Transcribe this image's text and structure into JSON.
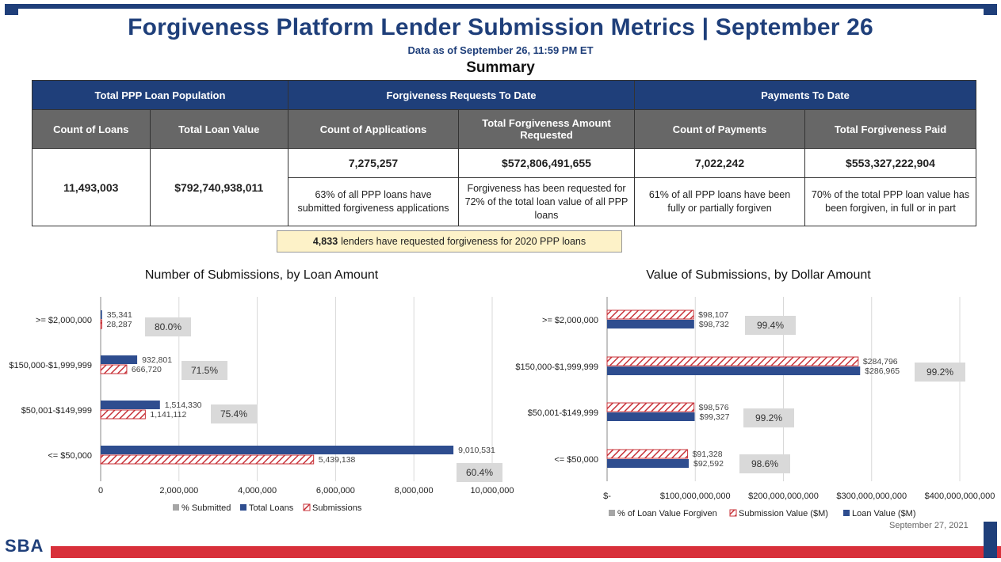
{
  "header": {
    "title": "Forgiveness Platform Lender Submission Metrics | September 26",
    "subtitle": "Data as of September 26, 11:59 PM ET",
    "summary_label": "Summary"
  },
  "summary_table": {
    "group_headers": [
      "Total PPP Loan Population",
      "Forgiveness Requests To Date",
      "Payments To Date"
    ],
    "column_headers": [
      "Count of Loans",
      "Total Loan Value",
      "Count of Applications",
      "Total Forgiveness Amount Requested",
      "Count of Payments",
      "Total Forgiveness Paid"
    ],
    "count_of_loans": "11,493,003",
    "total_loan_value": "$792,740,938,011",
    "count_of_applications": "7,275,257",
    "total_forgiveness_requested": "$572,806,491,655",
    "count_of_payments": "7,022,242",
    "total_forgiveness_paid": "$553,327,222,904",
    "notes": [
      "63% of all PPP loans have submitted forgiveness applications",
      "Forgiveness has been requested for 72% of the total loan value of all PPP loans",
      "61% of all PPP loans have been fully or partially forgiven",
      "70% of the total PPP loan value has been forgiven, in full or in part"
    ]
  },
  "lenders_note": {
    "count": "4,833",
    "text": "lenders have requested forgiveness for 2020 PPP loans"
  },
  "chart_data": [
    {
      "type": "bar",
      "orientation": "horizontal",
      "title": "Number of Submissions, by Loan Amount",
      "categories": [
        ">= $2,000,000",
        "$150,000-$1,999,999",
        "$50,001-$149,999",
        "<= $50,000"
      ],
      "series": [
        {
          "name": "Total Loans",
          "values": [
            35341,
            932801,
            1514330,
            9010531
          ],
          "labels": [
            "35,341",
            "932,801",
            "1,514,330",
            "9,010,531"
          ],
          "color": "#2e4d8f"
        },
        {
          "name": "Submissions",
          "values": [
            28287,
            666720,
            1141112,
            5439138
          ],
          "labels": [
            "28,287",
            "666,720",
            "1,141,112",
            "5,439,138"
          ],
          "color": "#c8333a",
          "pattern": "hatch"
        },
        {
          "name": "% Submitted",
          "values": [
            80.0,
            71.5,
            75.4,
            60.4
          ],
          "labels": [
            "80.0%",
            "71.5%",
            "75.4%",
            "60.4%"
          ],
          "color": "#a6a6a6"
        }
      ],
      "legend": [
        "% Submitted",
        "Total Loans",
        "Submissions"
      ],
      "legend_position": "bottom",
      "xlim": [
        0,
        10000000
      ],
      "xticks": [
        "0",
        "2,000,000",
        "4,000,000",
        "6,000,000",
        "8,000,000",
        "10,000,000"
      ],
      "grid": true
    },
    {
      "type": "bar",
      "orientation": "horizontal",
      "title": "Value of Submissions, by Dollar Amount",
      "categories": [
        ">= $2,000,000",
        "$150,000-$1,999,999",
        "$50,001-$149,999",
        "<= $50,000"
      ],
      "series": [
        {
          "name": "Submission Value ($M)",
          "values": [
            98107,
            284796,
            98576,
            91328
          ],
          "labels": [
            "$98,107",
            "$284,796",
            "$98,576",
            "$91,328"
          ],
          "color": "#c8333a",
          "pattern": "hatch"
        },
        {
          "name": "Loan Value ($M)",
          "values": [
            98732,
            286965,
            99327,
            92592
          ],
          "labels": [
            "$98,732",
            "$286,965",
            "$99,327",
            "$92,592"
          ],
          "color": "#2e4d8f"
        },
        {
          "name": "% of Loan Value Forgiven",
          "values": [
            99.4,
            99.2,
            99.2,
            98.6
          ],
          "labels": [
            "99.4%",
            "99.2%",
            "99.2%",
            "98.6%"
          ],
          "color": "#a6a6a6"
        }
      ],
      "legend": [
        "% of Loan Value Forgiven",
        "Submission Value ($M)",
        "Loan Value ($M)"
      ],
      "legend_position": "bottom",
      "xlim": [
        0,
        400000
      ],
      "xticks": [
        "$-",
        "$100,000,000,000",
        "$200,000,000,000",
        "$300,000,000,000",
        "$400,000,000,000"
      ],
      "grid": true
    }
  ],
  "footer": {
    "date": "September 27, 2021",
    "logo": "SBA"
  }
}
